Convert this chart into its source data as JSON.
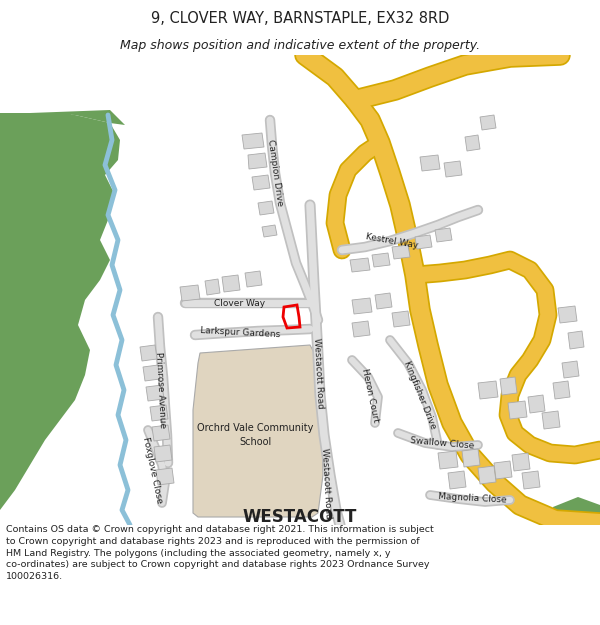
{
  "title": "9, CLOVER WAY, BARNSTAPLE, EX32 8RD",
  "subtitle": "Map shows position and indicative extent of the property.",
  "footer": "Contains OS data © Crown copyright and database right 2021. This information is subject\nto Crown copyright and database rights 2023 and is reproduced with the permission of\nHM Land Registry. The polygons (including the associated geometry, namely x, y\nco-ordinates) are subject to Crown copyright and database rights 2023 Ordnance Survey\n100026316.",
  "bg_color": "#ffffff",
  "map_bg": "#f5f5f5",
  "road_color": "#e0e0e0",
  "road_outline": "#c0c0c0",
  "yellow_road": "#f0c040",
  "yellow_road_outline": "#d4a800",
  "green_area": "#6ba05a",
  "water_color": "#8cc0d8",
  "building_color": "#d8d8d8",
  "school_color": "#e0d5c0",
  "highlight_color": "#ee0000",
  "text_color": "#222222",
  "title_fontsize": 10.5,
  "subtitle_fontsize": 9,
  "footer_fontsize": 6.8,
  "label_fontsize": 6.5,
  "westacott_fontsize": 12,
  "school_fontsize": 7
}
